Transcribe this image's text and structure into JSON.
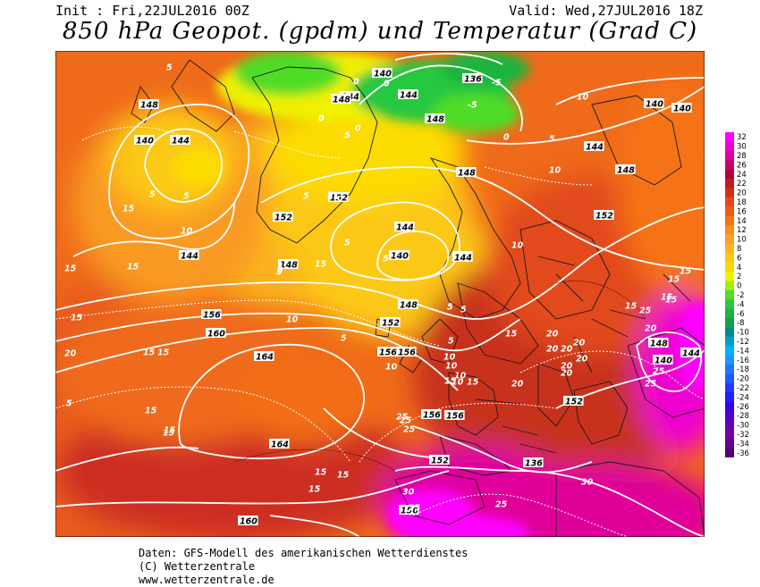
{
  "header": {
    "init": "Init : Fri,22JUL2016 00Z",
    "valid": "Valid: Wed,27JUL2016 18Z",
    "title": "850 hPa Geopot. (gpdm) und Temperatur (Grad C)"
  },
  "colorbar": {
    "labels": [
      "32",
      "30",
      "28",
      "26",
      "24",
      "22",
      "20",
      "18",
      "16",
      "14",
      "12",
      "10",
      "8",
      "6",
      "4",
      "2",
      "0",
      "-2",
      "-4",
      "-6",
      "-8",
      "-10",
      "-12",
      "-14",
      "-16",
      "-18",
      "-20",
      "-22",
      "-24",
      "-26",
      "-28",
      "-30",
      "-32",
      "-34",
      "-36"
    ],
    "colors": [
      "#ff00ff",
      "#f000d0",
      "#e000a0",
      "#c8006e",
      "#b4003c",
      "#be1e1e",
      "#d23214",
      "#e6461e",
      "#f05a14",
      "#f57314",
      "#fa8c1e",
      "#fca028",
      "#fcb41e",
      "#fcc814",
      "#fcdc00",
      "#f0f000",
      "#a0f000",
      "#50dc28",
      "#28c840",
      "#1eb43c",
      "#14a050",
      "#008c8c",
      "#00a0c8",
      "#00b4ff",
      "#1e96ff",
      "#1e78ff",
      "#1e5aff",
      "#1e3cff",
      "#1e1eff",
      "#3c00e6",
      "#5000c8",
      "#6400b4",
      "#7800a0",
      "#64008c",
      "#500078"
    ]
  },
  "map_labels": {
    "geopotential": [
      {
        "v": "148"
      },
      {
        "v": "144"
      },
      {
        "v": "140"
      },
      {
        "v": "144"
      },
      {
        "v": "148"
      },
      {
        "v": "140"
      },
      {
        "v": "136"
      },
      {
        "v": "144"
      },
      {
        "v": "148"
      },
      {
        "v": "140"
      },
      {
        "v": "144"
      },
      {
        "v": "148"
      },
      {
        "v": "152"
      },
      {
        "v": "152"
      },
      {
        "v": "144"
      },
      {
        "v": "140"
      },
      {
        "v": "144"
      },
      {
        "v": "148"
      },
      {
        "v": "152"
      },
      {
        "v": "156"
      },
      {
        "v": "160"
      },
      {
        "v": "164"
      },
      {
        "v": "164"
      },
      {
        "v": "160"
      },
      {
        "v": "156"
      },
      {
        "v": "156"
      },
      {
        "v": "156"
      },
      {
        "v": "156"
      },
      {
        "v": "152"
      },
      {
        "v": "152"
      },
      {
        "v": "148"
      },
      {
        "v": "144"
      },
      {
        "v": "136"
      },
      {
        "v": "140"
      },
      {
        "v": "144"
      },
      {
        "v": "144"
      },
      {
        "v": "148"
      },
      {
        "v": "148"
      },
      {
        "v": "152"
      },
      {
        "v": "156"
      },
      {
        "v": "140"
      }
    ],
    "temperature": [
      {
        "v": "5"
      },
      {
        "v": "5"
      },
      {
        "v": "10"
      },
      {
        "v": "5"
      },
      {
        "v": "0"
      },
      {
        "v": "5"
      },
      {
        "v": "10"
      },
      {
        "v": "15"
      },
      {
        "v": "15"
      },
      {
        "v": "15"
      },
      {
        "v": "15"
      },
      {
        "v": "15"
      },
      {
        "v": "15"
      },
      {
        "v": "10"
      },
      {
        "v": "5"
      },
      {
        "v": "5"
      },
      {
        "v": "5"
      },
      {
        "v": "5"
      },
      {
        "v": "5"
      },
      {
        "v": "0"
      },
      {
        "v": "0"
      },
      {
        "v": "0"
      },
      {
        "v": "-5"
      },
      {
        "v": "-5"
      },
      {
        "v": "0"
      },
      {
        "v": "5"
      },
      {
        "v": "10"
      },
      {
        "v": "10"
      },
      {
        "v": "5"
      },
      {
        "v": "5"
      },
      {
        "v": "10"
      },
      {
        "v": "10"
      },
      {
        "v": "10"
      },
      {
        "v": "10"
      },
      {
        "v": "15"
      },
      {
        "v": "15"
      },
      {
        "v": "15"
      },
      {
        "v": "15"
      },
      {
        "v": "15"
      },
      {
        "v": "15"
      },
      {
        "v": "20"
      },
      {
        "v": "20"
      },
      {
        "v": "20"
      },
      {
        "v": "20"
      },
      {
        "v": "20"
      },
      {
        "v": "20"
      },
      {
        "v": "25"
      },
      {
        "v": "25"
      },
      {
        "v": "25"
      },
      {
        "v": "25"
      },
      {
        "v": "25"
      },
      {
        "v": "30"
      },
      {
        "v": "30"
      },
      {
        "v": "15"
      },
      {
        "v": "15"
      },
      {
        "v": "15"
      },
      {
        "v": "25"
      },
      {
        "v": "20"
      },
      {
        "v": "20"
      },
      {
        "v": "20"
      },
      {
        "v": "15"
      },
      {
        "v": "10"
      },
      {
        "v": "5"
      },
      {
        "v": "5"
      },
      {
        "v": "5"
      },
      {
        "v": "5"
      },
      {
        "v": "15"
      },
      {
        "v": "15"
      },
      {
        "v": "20"
      },
      {
        "v": "25"
      },
      {
        "v": "25"
      },
      {
        "v": "15"
      },
      {
        "v": "15"
      },
      {
        "v": "15"
      },
      {
        "v": "5"
      }
    ]
  },
  "footer": {
    "line1": "Daten: GFS-Modell des amerikanischen Wetterdienstes",
    "line2": "(C) Wetterzentrale",
    "line3": "www.wetterzentrale.de"
  }
}
